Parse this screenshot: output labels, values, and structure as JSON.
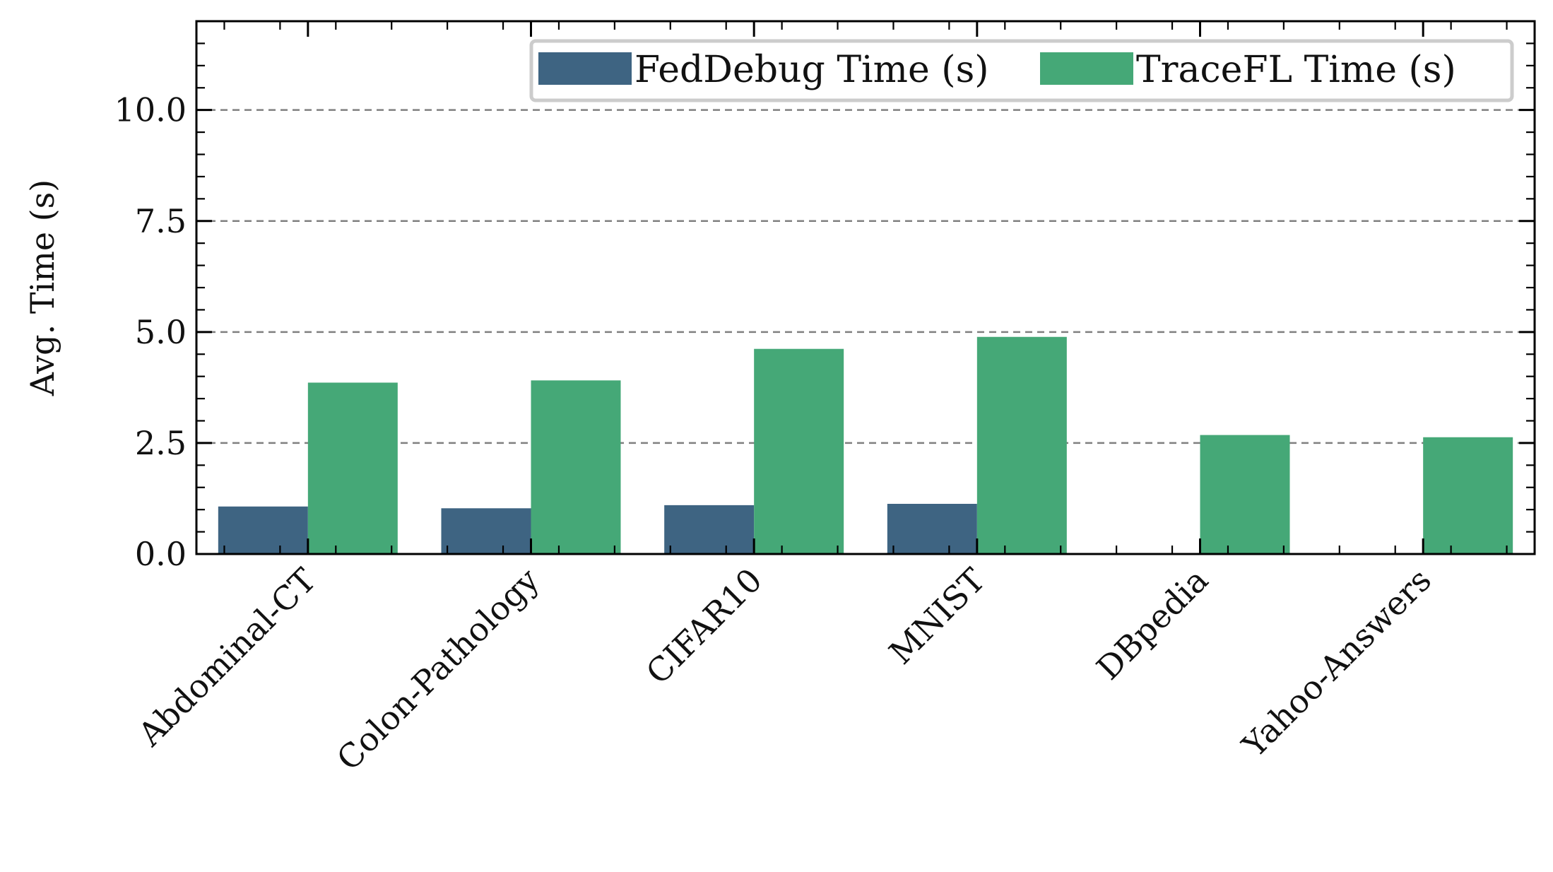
{
  "chart_data": {
    "type": "bar",
    "title": "",
    "xlabel": "",
    "ylabel": "Avg. Time (s)",
    "categories": [
      "Abdominal-CT",
      "Colon-Pathology",
      "CIFAR10",
      "MNIST",
      "DBpedia",
      "Yahoo-Answers"
    ],
    "series": [
      {
        "name": "FedDebug Time (s)",
        "color": "#3e6482",
        "values": [
          1.07,
          1.03,
          1.1,
          1.13,
          null,
          null
        ]
      },
      {
        "name": "TraceFL Time (s)",
        "color": "#45a877",
        "values": [
          3.86,
          3.91,
          4.62,
          4.89,
          2.68,
          2.63
        ]
      }
    ],
    "ylim": [
      0,
      12
    ],
    "yticks": [
      0.0,
      2.5,
      5.0,
      7.5,
      10.0
    ],
    "ytick_labels": [
      "0.0",
      "2.5",
      "5.0",
      "7.5",
      "10.0"
    ],
    "grid": {
      "y": true,
      "style": "dashed",
      "color": "#808080"
    },
    "legend": {
      "placement": "top-right"
    }
  }
}
